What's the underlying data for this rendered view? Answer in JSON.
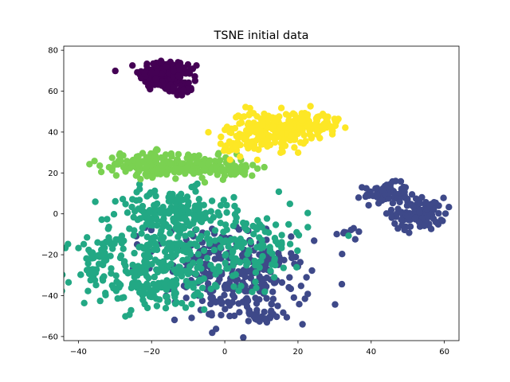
{
  "chart_data": {
    "type": "scatter",
    "title": "TSNE initial data",
    "xlabel": "",
    "ylabel": "",
    "xlim": [
      -44,
      64
    ],
    "ylim": [
      -62,
      82
    ],
    "xticks": [
      -40,
      -20,
      0,
      20,
      40,
      60
    ],
    "yticks": [
      -60,
      -40,
      -20,
      0,
      20,
      40,
      60,
      80
    ],
    "xtick_labels": [
      "−40",
      "−20",
      "0",
      "20",
      "40",
      "60"
    ],
    "ytick_labels": [
      "−60",
      "−40",
      "−20",
      "0",
      "20",
      "40",
      "60",
      "80"
    ],
    "grid": false,
    "legend": "none",
    "colormap": "viridis",
    "series": [
      {
        "color": "#440154",
        "clusters": [
          {
            "cx": -17,
            "cy": 68,
            "sx": 3.2,
            "sy": 4.0,
            "n": 150
          },
          {
            "cx": -12,
            "cy": 61,
            "sx": 2.0,
            "sy": 2.2,
            "n": 25
          },
          {
            "cx": -11,
            "cy": 70,
            "sx": 2.0,
            "sy": 2.0,
            "n": 20
          }
        ]
      },
      {
        "color": "#3e4989",
        "clusters": [
          {
            "cx": 44,
            "cy": 10,
            "sx": 3.0,
            "sy": 2.5,
            "n": 70
          },
          {
            "cx": 53,
            "cy": 0,
            "sx": 3.5,
            "sy": 4.0,
            "n": 110
          },
          {
            "cx": 34,
            "cy": -9,
            "sx": 1.8,
            "sy": 1.2,
            "n": 10
          },
          {
            "cx": 5,
            "cy": -33,
            "sx": 9.0,
            "sy": 10.0,
            "n": 230
          },
          {
            "cx": -5,
            "cy": -20,
            "sx": 8.0,
            "sy": 8.0,
            "n": 80
          },
          {
            "cx": 10,
            "cy": -50,
            "sx": 3.0,
            "sy": 2.0,
            "n": 20
          }
        ]
      },
      {
        "color": "#22a884",
        "clusters": [
          {
            "cx": -15,
            "cy": 0,
            "sx": 8.0,
            "sy": 6.0,
            "n": 170
          },
          {
            "cx": -20,
            "cy": -28,
            "sx": 10.0,
            "sy": 10.0,
            "n": 260
          },
          {
            "cx": 5,
            "cy": -15,
            "sx": 9.0,
            "sy": 10.0,
            "n": 150
          },
          {
            "cx": -35,
            "cy": -20,
            "sx": 2.5,
            "sy": 4.0,
            "n": 25
          }
        ]
      },
      {
        "color": "#7ad151",
        "clusters": [
          {
            "cx": -20,
            "cy": 24,
            "sx": 7.0,
            "sy": 3.0,
            "n": 170
          },
          {
            "cx": -5,
            "cy": 23,
            "sx": 5.5,
            "sy": 2.5,
            "n": 80
          },
          {
            "cx": 3,
            "cy": 22,
            "sx": 3.0,
            "sy": 2.0,
            "n": 30
          }
        ]
      },
      {
        "color": "#fde725",
        "clusters": [
          {
            "cx": 12,
            "cy": 41,
            "sx": 5.5,
            "sy": 4.5,
            "n": 180
          },
          {
            "cx": 23,
            "cy": 44,
            "sx": 4.5,
            "sy": 3.0,
            "n": 90
          },
          {
            "cx": 5,
            "cy": 33,
            "sx": 3.0,
            "sy": 2.5,
            "n": 30
          }
        ]
      }
    ]
  }
}
